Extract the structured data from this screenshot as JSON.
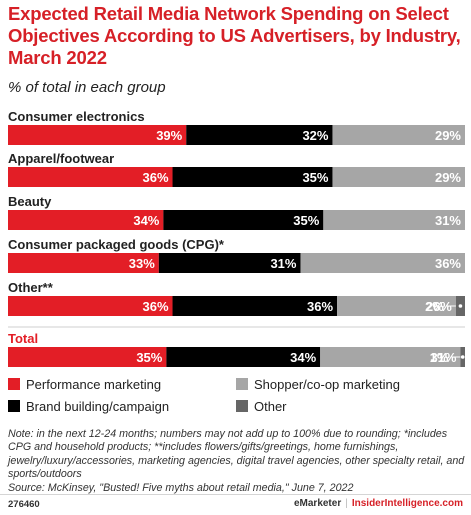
{
  "title": "Expected Retail Media Network Spending on Select Objectives According to US Advertisers, by Industry, March 2022",
  "subtitle": "% of total in each group",
  "chart_data": {
    "type": "bar",
    "orientation": "horizontal",
    "stacked": true,
    "unit": "%",
    "categories": [
      "Consumer electronics",
      "Apparel/footwear",
      "Beauty",
      "Consumer packaged goods (CPG)*",
      "Other**",
      "Total"
    ],
    "series": [
      {
        "name": "Performance marketing",
        "color": "#e31e26",
        "values": [
          39,
          36,
          34,
          33,
          36,
          35
        ]
      },
      {
        "name": "Brand building/campaign",
        "color": "#000000",
        "values": [
          32,
          35,
          35,
          31,
          36,
          34
        ]
      },
      {
        "name": "Shopper/co-op marketing",
        "color": "#a6a6a6",
        "values": [
          29,
          29,
          31,
          36,
          26,
          31
        ]
      },
      {
        "name": "Other",
        "color": "#666666",
        "values": [
          null,
          null,
          null,
          null,
          2,
          1
        ]
      }
    ],
    "value_labels": [
      [
        "39%",
        "32%",
        "29%",
        ""
      ],
      [
        "36%",
        "35%",
        "29%",
        ""
      ],
      [
        "34%",
        "35%",
        "31%",
        ""
      ],
      [
        "33%",
        "31%",
        "36%",
        ""
      ],
      [
        "36%",
        "36%",
        "26%",
        "2%"
      ],
      [
        "35%",
        "34%",
        "31%",
        "1%"
      ]
    ],
    "legend": [
      {
        "label": "Performance marketing",
        "color": "#e31e26"
      },
      {
        "label": "Shopper/co-op marketing",
        "color": "#a6a6a6"
      },
      {
        "label": "Brand building/campaign",
        "color": "#000000"
      },
      {
        "label": "Other",
        "color": "#666666"
      }
    ],
    "legend_position": "bottom",
    "highlight_category_color": "#e31e26",
    "grid": false
  },
  "note": "Note: in the next 12-24 months; numbers may not add up to 100% due to rounding; *includes CPG and household products; **includes flowers/gifts/greetings, home furnishings, jewelry/luxury/accessories, marketing agencies, digital travel agencies, other specialty retail, and sports/outdoors",
  "source": "Source: McKinsey, \"Busted! Five myths about retail media,\" June 7, 2022",
  "footer": {
    "id": "276460",
    "brand1": "eMarketer",
    "separator": "|",
    "brand2": "InsiderIntelligence.com"
  }
}
